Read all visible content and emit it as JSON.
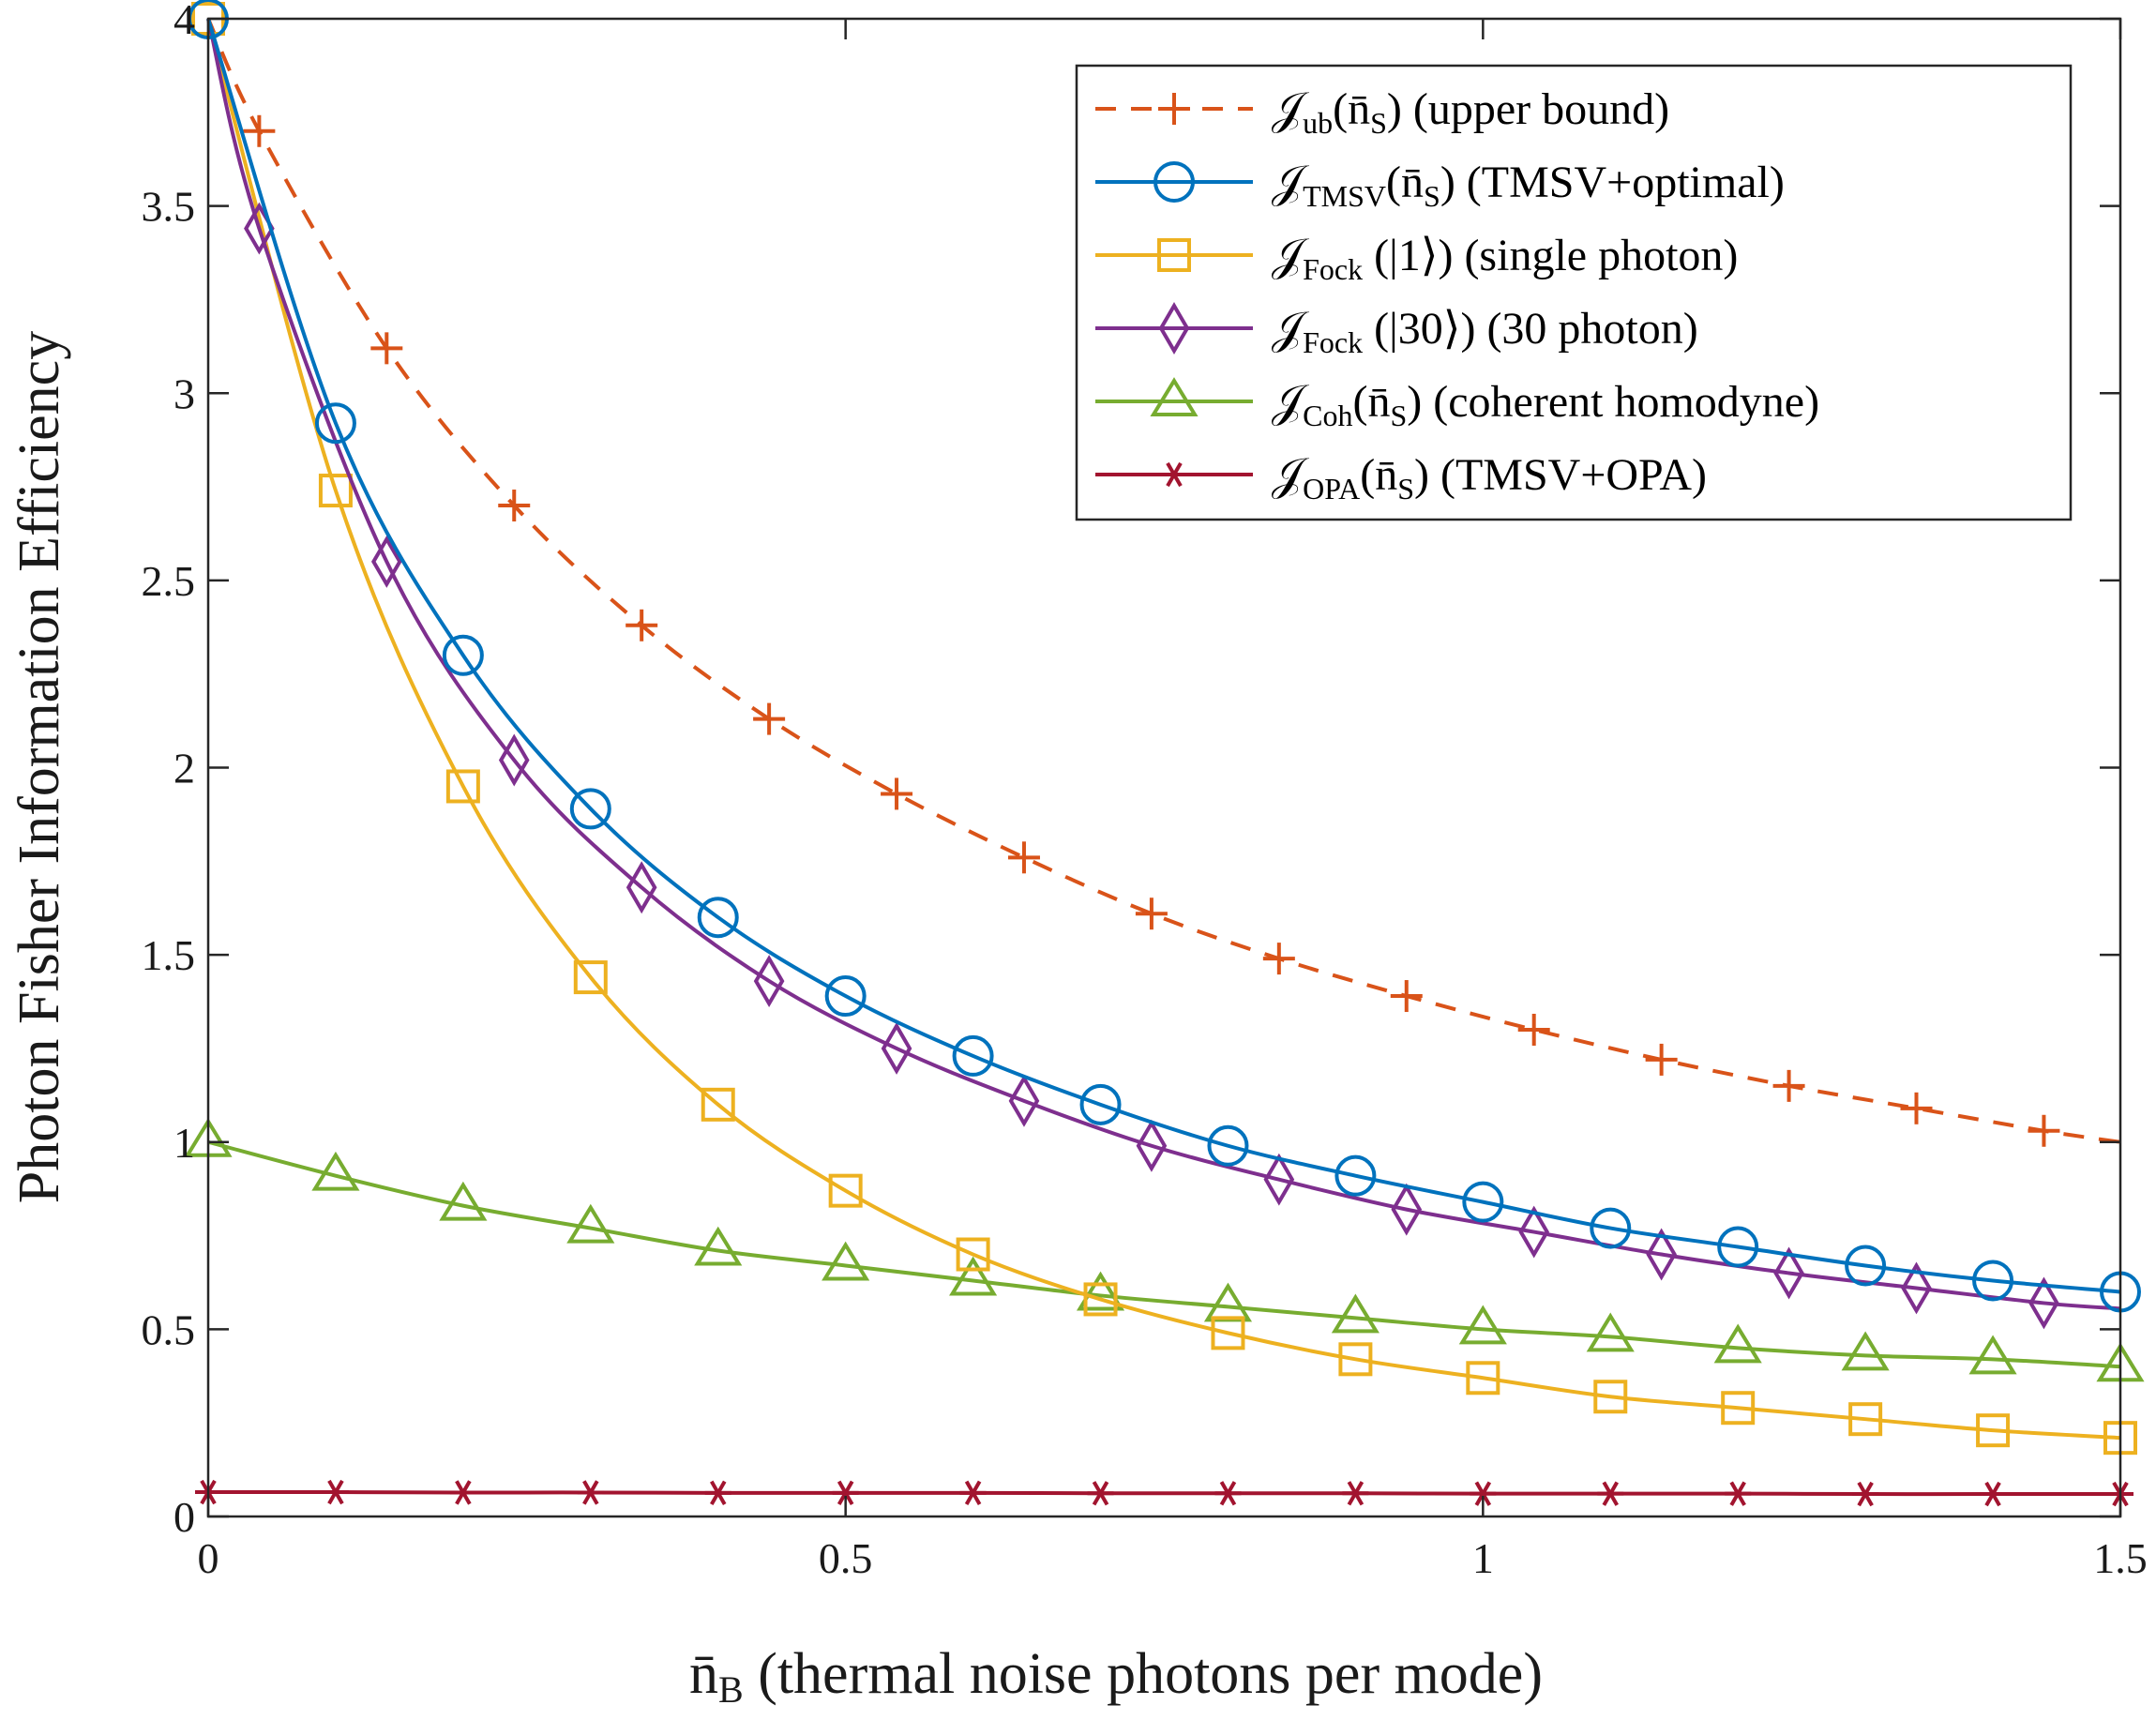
{
  "chart_data": {
    "type": "line",
    "xlabel_symbol": "n̄",
    "xlabel_symbol_sub": "B",
    "xlabel_text": " (thermal noise photons per mode)",
    "ylabel": "Photon Fisher Information Efficiency",
    "xlim": [
      0,
      1.5
    ],
    "ylim": [
      0,
      4
    ],
    "x_ticks": [
      0,
      0.5,
      1,
      1.5
    ],
    "x_tick_labels": [
      "0",
      "0.5",
      "1",
      "1.5"
    ],
    "y_ticks": [
      0,
      0.5,
      1,
      1.5,
      2,
      2.5,
      3,
      3.5,
      4
    ],
    "y_tick_labels": [
      "0",
      "0.5",
      "1",
      "1.5",
      "2",
      "2.5",
      "3",
      "3.5",
      "4"
    ],
    "legend_position": "top-right",
    "series": [
      {
        "name": "upper bound",
        "legend_sym": "𝒥",
        "legend_sub": "ub",
        "legend_rest": "(n̄",
        "legend_rest_sub": "S",
        "legend_tail": ") (upper bound)",
        "color": "#D95319",
        "dash": "dashed",
        "marker": "plus",
        "x": [
          0,
          0.04,
          0.14,
          0.24,
          0.34,
          0.44,
          0.54,
          0.64,
          0.74,
          0.84,
          0.94,
          1.04,
          1.14,
          1.24,
          1.34,
          1.44,
          1.5
        ],
        "y": [
          4.0,
          3.7,
          3.12,
          2.7,
          2.38,
          2.13,
          1.93,
          1.76,
          1.61,
          1.49,
          1.39,
          1.3,
          1.22,
          1.15,
          1.09,
          1.03,
          1.0
        ],
        "marker_idx": [
          1,
          2,
          3,
          4,
          5,
          6,
          7,
          8,
          9,
          10,
          11,
          12,
          13,
          14,
          15
        ]
      },
      {
        "name": "TMSV+optimal",
        "legend_sym": "𝒥",
        "legend_sub": "TMSV",
        "legend_rest": "(n̄",
        "legend_rest_sub": "S",
        "legend_tail": ") (TMSV+optimal)",
        "color": "#0072BD",
        "dash": "solid",
        "marker": "circle",
        "x": [
          0,
          0.1,
          0.2,
          0.3,
          0.4,
          0.5,
          0.6,
          0.7,
          0.8,
          0.9,
          1.0,
          1.1,
          1.2,
          1.3,
          1.4,
          1.5
        ],
        "y": [
          4.0,
          2.92,
          2.3,
          1.89,
          1.6,
          1.39,
          1.23,
          1.1,
          0.99,
          0.91,
          0.84,
          0.77,
          0.72,
          0.67,
          0.63,
          0.6
        ],
        "marker_idx": [
          0,
          1,
          2,
          3,
          4,
          5,
          6,
          7,
          8,
          9,
          10,
          11,
          12,
          13,
          14,
          15
        ]
      },
      {
        "name": "single photon",
        "legend_sym": "𝒥",
        "legend_sub": "Fock",
        "legend_rest": " (|1⟩",
        "legend_rest_sub": "",
        "legend_tail": ") (single photon)",
        "color": "#EDB120",
        "dash": "solid",
        "marker": "square",
        "x": [
          0,
          0.1,
          0.2,
          0.3,
          0.4,
          0.5,
          0.6,
          0.7,
          0.8,
          0.9,
          1.0,
          1.1,
          1.2,
          1.3,
          1.4,
          1.5
        ],
        "y": [
          4.0,
          2.74,
          1.95,
          1.44,
          1.1,
          0.87,
          0.7,
          0.58,
          0.49,
          0.42,
          0.37,
          0.32,
          0.29,
          0.26,
          0.23,
          0.21
        ],
        "marker_idx": [
          0,
          1,
          2,
          3,
          4,
          5,
          6,
          7,
          8,
          9,
          10,
          11,
          12,
          13,
          14,
          15
        ]
      },
      {
        "name": "30 photon",
        "legend_sym": "𝒥",
        "legend_sub": "Fock",
        "legend_rest": " (|30⟩",
        "legend_rest_sub": "",
        "legend_tail": ") (30 photon)",
        "color": "#7E2F8E",
        "dash": "solid",
        "marker": "diamond",
        "x": [
          0,
          0.04,
          0.14,
          0.24,
          0.34,
          0.44,
          0.54,
          0.64,
          0.74,
          0.84,
          0.94,
          1.04,
          1.14,
          1.24,
          1.34,
          1.44,
          1.5
        ],
        "y": [
          4.0,
          3.44,
          2.55,
          2.02,
          1.68,
          1.43,
          1.25,
          1.11,
          0.99,
          0.9,
          0.82,
          0.76,
          0.7,
          0.65,
          0.61,
          0.57,
          0.555
        ],
        "marker_idx": [
          1,
          2,
          3,
          4,
          5,
          6,
          7,
          8,
          9,
          10,
          11,
          12,
          13,
          14,
          15
        ]
      },
      {
        "name": "coherent homodyne",
        "legend_sym": "𝒥",
        "legend_sub": "Coh",
        "legend_rest": "(n̄",
        "legend_rest_sub": "S",
        "legend_tail": ") (coherent homodyne)",
        "color": "#77AC30",
        "dash": "solid",
        "marker": "triangle",
        "x": [
          0,
          0.1,
          0.2,
          0.3,
          0.4,
          0.5,
          0.6,
          0.7,
          0.8,
          0.9,
          1.0,
          1.1,
          1.2,
          1.3,
          1.4,
          1.5
        ],
        "y": [
          1.0,
          0.91,
          0.83,
          0.77,
          0.71,
          0.67,
          0.63,
          0.59,
          0.56,
          0.53,
          0.5,
          0.48,
          0.45,
          0.43,
          0.42,
          0.4
        ],
        "marker_idx": [
          0,
          1,
          2,
          3,
          4,
          5,
          6,
          7,
          8,
          9,
          10,
          11,
          12,
          13,
          14,
          15
        ]
      },
      {
        "name": "TMSV+OPA",
        "legend_sym": "𝒥",
        "legend_sub": "OPA",
        "legend_rest": "(n̄",
        "legend_rest_sub": "S",
        "legend_tail": ") (TMSV+OPA)",
        "color": "#A2142F",
        "dash": "solid",
        "marker": "asterisk",
        "x": [
          0,
          0.1,
          0.2,
          0.3,
          0.4,
          0.5,
          0.6,
          0.7,
          0.8,
          0.9,
          1.0,
          1.1,
          1.2,
          1.3,
          1.4,
          1.5
        ],
        "y": [
          0.065,
          0.065,
          0.064,
          0.064,
          0.063,
          0.063,
          0.063,
          0.062,
          0.062,
          0.062,
          0.061,
          0.061,
          0.061,
          0.06,
          0.06,
          0.06
        ],
        "marker_idx": [
          0,
          1,
          2,
          3,
          4,
          5,
          6,
          7,
          8,
          9,
          10,
          11,
          12,
          13,
          14,
          15
        ]
      }
    ]
  }
}
